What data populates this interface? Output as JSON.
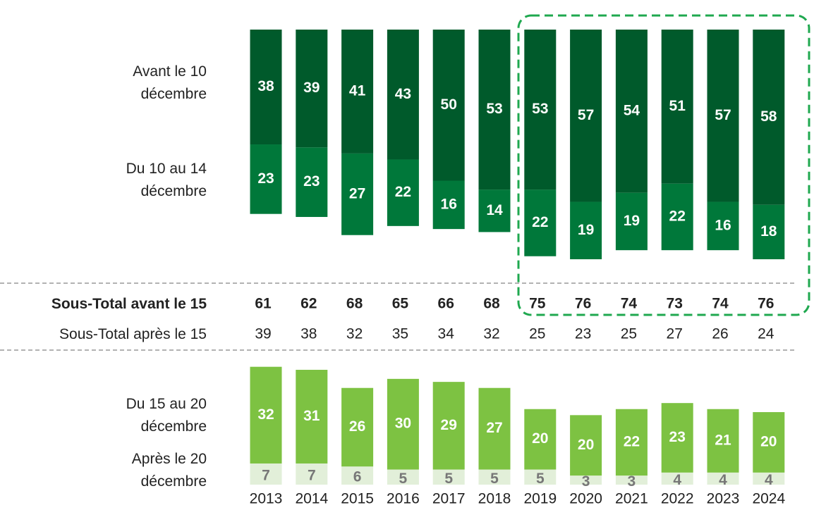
{
  "chart_data": [
    {
      "type": "stacked-bar-down",
      "series": [
        {
          "name": "Avant le 10 décembre",
          "color": "#005a2b",
          "values": [
            38,
            39,
            41,
            43,
            50,
            53,
            53,
            57,
            54,
            51,
            57,
            58
          ]
        },
        {
          "name": "Du 10 au 14 décembre",
          "color": "#00783a",
          "values": [
            23,
            23,
            27,
            22,
            16,
            14,
            22,
            19,
            19,
            22,
            16,
            18
          ]
        }
      ]
    },
    {
      "type": "stacked-bar",
      "categories": [
        "2013",
        "2014",
        "2015",
        "2016",
        "2017",
        "2018",
        "2019",
        "2020",
        "2021",
        "2022",
        "2023",
        "2024"
      ],
      "series": [
        {
          "name": "Après  le 20 décembre",
          "color": "#e2efd9",
          "values": [
            7,
            7,
            6,
            5,
            5,
            5,
            5,
            3,
            3,
            4,
            4,
            4
          ]
        },
        {
          "name": "Du 15 au 20 décembre",
          "color": "#7dc242",
          "values": [
            32,
            31,
            26,
            30,
            29,
            27,
            20,
            20,
            22,
            23,
            21,
            20
          ]
        }
      ]
    }
  ],
  "summary": [
    {
      "label": "Sous-Total avant le 15",
      "values": [
        61,
        62,
        68,
        65,
        66,
        68,
        75,
        76,
        74,
        73,
        74,
        76
      ]
    },
    {
      "label": "Sous-Total après le 15",
      "values": [
        39,
        38,
        32,
        35,
        34,
        32,
        25,
        23,
        25,
        27,
        26,
        24
      ]
    }
  ]
}
